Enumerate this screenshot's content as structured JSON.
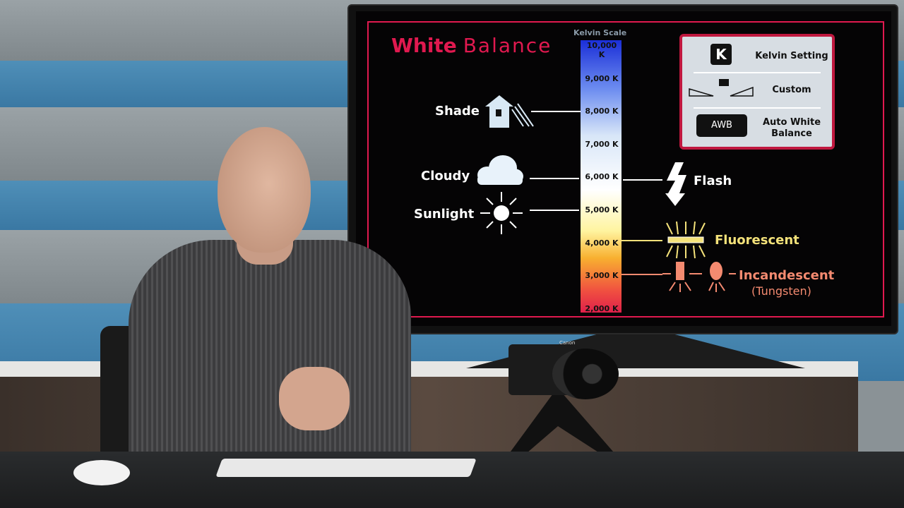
{
  "slide": {
    "title_word1": "White",
    "title_word2": "Balance",
    "scale_title": "Kelvin Scale",
    "ticks": [
      "10,000 K",
      "9,000 K",
      "8,000 K",
      "7,000 K",
      "6,000 K",
      "5,000 K",
      "4,000 K",
      "3,000 K",
      "2,000 K"
    ],
    "presets": {
      "shade": "Shade",
      "cloudy": "Cloudy",
      "sunlight": "Sunlight",
      "flash": "Flash",
      "fluorescent": "Fluorescent",
      "incandescent": "Incandescent",
      "tungsten": "(Tungsten)"
    },
    "legend": {
      "k_icon": "K",
      "kelvin": "Kelvin Setting",
      "custom": "Custom",
      "awb_icon": "AWB",
      "awb_line1": "Auto White",
      "awb_line2": "Balance"
    },
    "colors": {
      "accent": "#e0194f",
      "fluorescent": "#f4e27a",
      "incandescent": "#f48a70"
    }
  },
  "camera": {
    "brand": "Canon"
  }
}
